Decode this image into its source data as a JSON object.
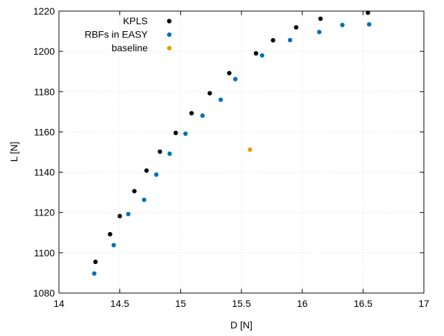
{
  "chart_data": {
    "type": "scatter",
    "xlabel": "D [N]",
    "ylabel": "L [N]",
    "xlim": [
      14,
      17
    ],
    "ylim": [
      1080,
      1220
    ],
    "xticks": [
      14,
      14.5,
      15,
      15.5,
      16,
      16.5,
      17
    ],
    "yticks": [
      1080,
      1100,
      1120,
      1140,
      1160,
      1180,
      1200,
      1220
    ],
    "grid": true,
    "legend_position": "top-left",
    "series": [
      {
        "name": "KPLS",
        "color": "#000000",
        "points": [
          [
            14.3,
            1095.5
          ],
          [
            14.42,
            1109.2
          ],
          [
            14.5,
            1118.2
          ],
          [
            14.62,
            1130.6
          ],
          [
            14.72,
            1140.8
          ],
          [
            14.83,
            1150.2
          ],
          [
            14.96,
            1159.5
          ],
          [
            15.09,
            1169.3
          ],
          [
            15.24,
            1179.2
          ],
          [
            15.4,
            1189.2
          ],
          [
            15.62,
            1199.0
          ],
          [
            15.76,
            1205.5
          ],
          [
            15.95,
            1211.9
          ],
          [
            16.15,
            1216.2
          ],
          [
            16.54,
            1219.2
          ]
        ]
      },
      {
        "name": "RBFs in EASY",
        "color": "#0072b2",
        "points": [
          [
            14.29,
            1089.7
          ],
          [
            14.45,
            1103.8
          ],
          [
            14.57,
            1119.2
          ],
          [
            14.7,
            1126.3
          ],
          [
            14.8,
            1138.8
          ],
          [
            14.91,
            1149.2
          ],
          [
            15.04,
            1159.1
          ],
          [
            15.18,
            1168.1
          ],
          [
            15.33,
            1176.0
          ],
          [
            15.45,
            1186.2
          ],
          [
            15.67,
            1198.0
          ],
          [
            15.9,
            1205.6
          ],
          [
            16.14,
            1209.6
          ],
          [
            16.33,
            1213.1
          ],
          [
            16.55,
            1213.4
          ]
        ]
      },
      {
        "name": "baseline",
        "color": "#e69f00",
        "points": [
          [
            15.57,
            1151.2
          ]
        ]
      }
    ]
  }
}
